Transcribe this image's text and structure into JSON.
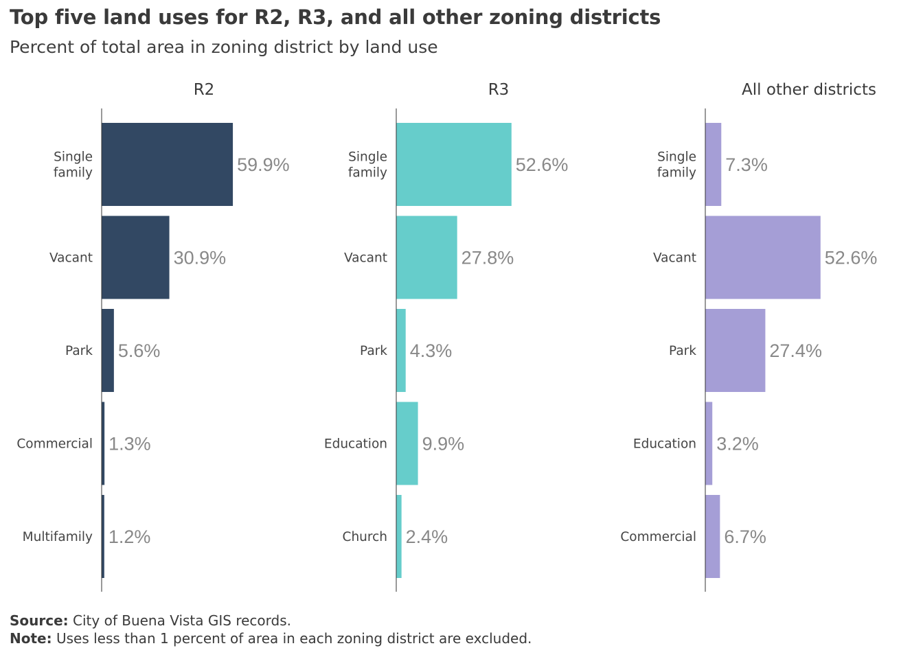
{
  "title": "Top five land uses for R2, R3, and all other zoning districts",
  "subtitle": "Percent of total area in zoning district by land use",
  "footer": {
    "source_label": "Source:",
    "source_text": "City of Buena Vista GIS records.",
    "note_label": "Note:",
    "note_text": "Uses less than 1 percent of area in each zoning district are excluded."
  },
  "chart_data": [
    {
      "type": "bar",
      "orientation": "horizontal",
      "title": "R2",
      "color": "#324863",
      "categories": [
        "Single family",
        "Vacant",
        "Park",
        "Commercial",
        "Multifamily"
      ],
      "values": [
        59.9,
        30.9,
        5.6,
        1.3,
        1.2
      ],
      "value_labels": [
        "59.9%",
        "30.9%",
        "5.6%",
        "1.3%",
        "1.2%"
      ],
      "xlim": [
        0,
        100
      ],
      "grid": false
    },
    {
      "type": "bar",
      "orientation": "horizontal",
      "title": "R3",
      "color": "#66cdcb",
      "categories": [
        "Single family",
        "Vacant",
        "Park",
        "Education",
        "Church"
      ],
      "values": [
        52.6,
        27.8,
        4.3,
        9.9,
        2.4
      ],
      "value_labels": [
        "52.6%",
        "27.8%",
        "4.3%",
        "9.9%",
        "2.4%"
      ],
      "xlim": [
        0,
        100
      ],
      "grid": false
    },
    {
      "type": "bar",
      "orientation": "horizontal",
      "title": "All other districts",
      "color": "#a59ed6",
      "categories": [
        "Single family",
        "Vacant",
        "Park",
        "Education",
        "Commercial"
      ],
      "values": [
        7.3,
        52.6,
        27.4,
        3.2,
        6.7
      ],
      "value_labels": [
        "7.3%",
        "52.6%",
        "27.4%",
        "3.2%",
        "6.7%"
      ],
      "xlim": [
        0,
        100
      ],
      "grid": false
    }
  ]
}
